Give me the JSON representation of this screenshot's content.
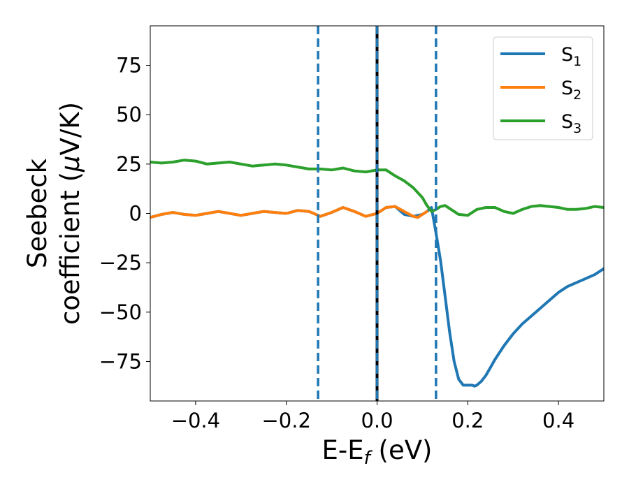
{
  "chart_data": {
    "type": "line",
    "xlabel": {
      "base": "E-E",
      "sub": "f",
      "unit": " (eV)"
    },
    "ylabel": {
      "line1": "Seebeck",
      "line2_text": "coefficient  (",
      "line2_mu": "μ",
      "line2_unit": "V/K)"
    },
    "xlim": [
      -0.5,
      0.5
    ],
    "ylim": [
      -95,
      95
    ],
    "x_ticks": [
      -0.4,
      -0.2,
      0.0,
      0.2,
      0.4
    ],
    "x_tick_labels": [
      "−0.4",
      "−0.2",
      "0.0",
      "0.2",
      "0.4"
    ],
    "y_ticks": [
      75,
      50,
      25,
      0,
      -25,
      -50,
      -75
    ],
    "y_tick_labels": [
      "75",
      "50",
      "25",
      "0",
      "−25",
      "−50",
      "−75"
    ],
    "grid": false,
    "legend_position": "top-right",
    "vertical_lines": [
      {
        "x": 0.0,
        "style": "solid",
        "color": "#000000"
      },
      {
        "x": 0.0,
        "style": "dashed",
        "color": "#1f77b4"
      },
      {
        "x": -0.13,
        "style": "dashed",
        "color": "#1f77b4"
      },
      {
        "x": 0.13,
        "style": "dashed",
        "color": "#1f77b4"
      }
    ],
    "series": [
      {
        "name": "S",
        "sub": "1",
        "color": "#1f77b4",
        "x": [
          -0.5,
          -0.475,
          -0.45,
          -0.425,
          -0.4,
          -0.375,
          -0.35,
          -0.325,
          -0.3,
          -0.275,
          -0.25,
          -0.225,
          -0.2,
          -0.175,
          -0.15,
          -0.125,
          -0.1,
          -0.075,
          -0.05,
          -0.025,
          0.0,
          0.02,
          0.04,
          0.06,
          0.08,
          0.1,
          0.11,
          0.12,
          0.13,
          0.14,
          0.15,
          0.16,
          0.17,
          0.18,
          0.19,
          0.2,
          0.21,
          0.215,
          0.22,
          0.23,
          0.24,
          0.25,
          0.26,
          0.28,
          0.3,
          0.32,
          0.34,
          0.36,
          0.38,
          0.4,
          0.42,
          0.44,
          0.46,
          0.48,
          0.5
        ],
        "y": [
          -2,
          -0.5,
          0.5,
          -0.5,
          -1,
          0,
          1,
          0,
          -1,
          0,
          1,
          0.5,
          0,
          1.5,
          1,
          -1.5,
          0.5,
          3,
          1,
          -1.5,
          0,
          3,
          3.5,
          -0.5,
          -1.5,
          -0.5,
          1,
          3,
          -10,
          -24,
          -42,
          -60,
          -75,
          -84,
          -87,
          -87,
          -87,
          -87.5,
          -87,
          -85,
          -82,
          -78,
          -74,
          -67,
          -61,
          -56,
          -52,
          -48,
          -44,
          -40,
          -37,
          -35,
          -33,
          -31,
          -28
        ]
      },
      {
        "name": "S",
        "sub": "2",
        "color": "#ff7f0e",
        "x": [
          -0.5,
          -0.475,
          -0.45,
          -0.425,
          -0.4,
          -0.375,
          -0.35,
          -0.325,
          -0.3,
          -0.275,
          -0.25,
          -0.225,
          -0.2,
          -0.175,
          -0.15,
          -0.125,
          -0.1,
          -0.075,
          -0.05,
          -0.025,
          0.0,
          0.02,
          0.04,
          0.06,
          0.08,
          0.09,
          0.1,
          0.11
        ],
        "y": [
          -2,
          -0.5,
          0.5,
          -0.5,
          -1,
          0,
          1,
          0,
          -1,
          0,
          1,
          0.5,
          0,
          1.5,
          1,
          -1.5,
          0.5,
          3,
          1,
          -1.5,
          0,
          3,
          3.5,
          1,
          -1.5,
          -2,
          -0.5,
          1
        ]
      },
      {
        "name": "S",
        "sub": "3",
        "color": "#2ca02c",
        "x": [
          -0.5,
          -0.475,
          -0.45,
          -0.425,
          -0.4,
          -0.375,
          -0.35,
          -0.325,
          -0.3,
          -0.275,
          -0.25,
          -0.225,
          -0.2,
          -0.175,
          -0.15,
          -0.125,
          -0.1,
          -0.075,
          -0.05,
          -0.025,
          0.0,
          0.02,
          0.04,
          0.06,
          0.08,
          0.1,
          0.11,
          0.12,
          0.13,
          0.14,
          0.15,
          0.16,
          0.18,
          0.2,
          0.22,
          0.24,
          0.26,
          0.28,
          0.3,
          0.32,
          0.34,
          0.36,
          0.38,
          0.4,
          0.42,
          0.44,
          0.46,
          0.48,
          0.5
        ],
        "y": [
          26,
          25.5,
          26,
          27,
          26.5,
          25,
          25.5,
          26,
          25,
          24,
          24.5,
          25,
          24.5,
          23.5,
          22.5,
          22.5,
          22,
          23,
          21.5,
          21,
          22,
          22,
          19,
          16.5,
          13,
          8,
          4,
          1,
          2,
          3.5,
          4,
          2.5,
          -0.5,
          -1,
          2,
          3,
          3,
          1,
          0,
          2,
          3.5,
          4,
          3.5,
          3,
          2,
          2,
          2.5,
          3.5,
          3
        ]
      }
    ]
  }
}
